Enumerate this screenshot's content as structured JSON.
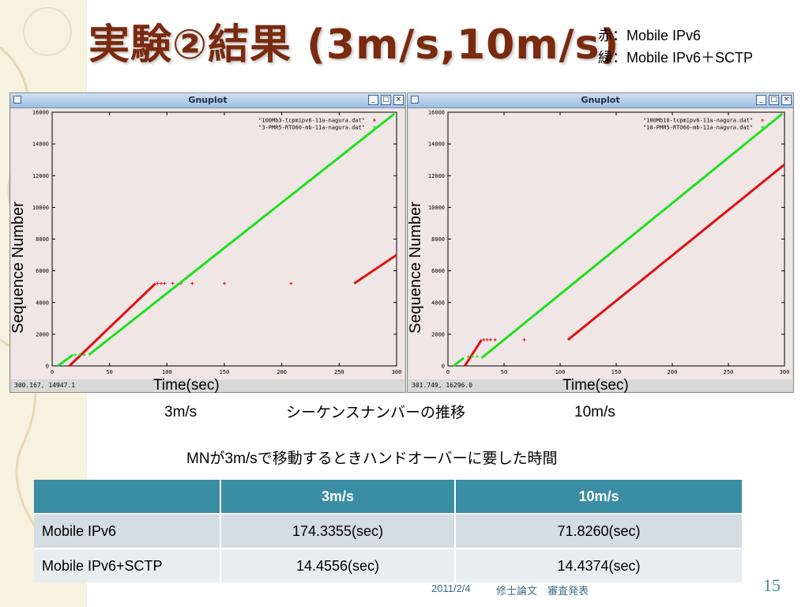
{
  "slide": {
    "title": "実験②結果 (3m/s,10m/s)",
    "legend_red": "赤：Mobile IPv6",
    "legend_green": "緑：Mobile IPv6＋SCTP",
    "caption_center": "シーケンスナンバーの推移",
    "caption_left_speed": "3m/s",
    "caption_right_speed": "10m/s",
    "axis_y_label": "Sequence Number",
    "axis_x_label": "Time(sec)",
    "table_title": "MNが3m/sで移動するときハンドオーバーに要した時間",
    "footer_date": "2011/2/4",
    "footer_text": "修士論文　審査発表",
    "page_number": "15"
  },
  "colors": {
    "title": "#7a2a0e",
    "table_header": "#3a8da3",
    "series_red": "#e01010",
    "series_green": "#1ee01e",
    "plot_bg": "#f0e6e6"
  },
  "windows": [
    {
      "title": "Gnuplot",
      "status": "300.167,  14947.1",
      "keys": [
        "\"100Mb3-tcpmipv6-11a-nagura.dat\"",
        "\"3-PMR5-RTO60-mb-11a-nagura.dat\""
      ]
    },
    {
      "title": "Gnuplot",
      "status": "301.749,  16296.0",
      "keys": [
        "\"100Mb10-tcpmipv6-11a-nagura.dat\"",
        "\"10-PMR5-RTO60-mb-11a-nagura.dat\""
      ]
    }
  ],
  "table": {
    "headers": [
      "",
      "3m/s",
      "10m/s"
    ],
    "rows": [
      [
        "Mobile IPv6",
        "174.3355(sec)",
        "71.8260(sec)"
      ],
      [
        "Mobile IPv6+SCTP",
        "14.4556(sec)",
        "14.4374(sec)"
      ]
    ]
  },
  "chart_data": [
    {
      "type": "scatter",
      "x_ticks": [
        "0",
        "50",
        "100",
        "150",
        "200",
        "250",
        "300"
      ],
      "y_ticks": [
        "0",
        "2000",
        "4000",
        "6000",
        "8000",
        "10000",
        "12000",
        "14000",
        "16000"
      ],
      "xlim": [
        0,
        300
      ],
      "ylim": [
        0,
        16000
      ],
      "series": [
        {
          "name": "\"100Mb3-tcpmipv6-11a-nagura.dat\"",
          "color": "#e01010",
          "segments": [
            [
              [
                15,
                0
              ],
              [
                90,
                5200
              ]
            ],
            [
              [
                263,
                5200
              ],
              [
                300,
                7000
              ]
            ]
          ],
          "points": [
            [
              92,
              5200
            ],
            [
              95,
              5200
            ],
            [
              98,
              5200
            ],
            [
              105,
              5200
            ],
            [
              112,
              5200
            ],
            [
              122,
              5200
            ],
            [
              150,
              5200
            ],
            [
              208,
              5200
            ]
          ]
        },
        {
          "name": "\"3-PMR5-RTO60-mb-11a-nagura.dat\"",
          "color": "#1ee01e",
          "segments": [
            [
              [
                5,
                0
              ],
              [
                18,
                700
              ]
            ],
            [
              [
                32,
                700
              ],
              [
                298,
                15900
              ]
            ]
          ],
          "points": [
            [
              20,
              700
            ],
            [
              24,
              700
            ],
            [
              28,
              700
            ]
          ]
        }
      ]
    },
    {
      "type": "scatter",
      "x_ticks": [
        "0",
        "50",
        "100",
        "150",
        "200",
        "250",
        "300"
      ],
      "y_ticks": [
        "0",
        "2000",
        "4000",
        "6000",
        "8000",
        "10000",
        "12000",
        "14000",
        "16000"
      ],
      "xlim": [
        0,
        300
      ],
      "ylim": [
        0,
        16000
      ],
      "series": [
        {
          "name": "\"100Mb10-tcpmipv6-11a-nagura.dat\"",
          "color": "#e01010",
          "segments": [
            [
              [
                15,
                0
              ],
              [
                30,
                1650
              ]
            ],
            [
              [
                107,
                1650
              ],
              [
                300,
                12700
              ]
            ]
          ],
          "points": [
            [
              32,
              1650
            ],
            [
              35,
              1650
            ],
            [
              38,
              1650
            ],
            [
              42,
              1650
            ],
            [
              68,
              1650
            ]
          ]
        },
        {
          "name": "\"10-PMR5-RTO60-mb-11a-nagura.dat\"",
          "color": "#1ee01e",
          "segments": [
            [
              [
                5,
                0
              ],
              [
                14,
                500
              ]
            ],
            [
              [
                30,
                500
              ],
              [
                298,
                15900
              ]
            ]
          ],
          "points": [
            [
              18,
              600
            ],
            [
              22,
              600
            ],
            [
              26,
              600
            ]
          ]
        }
      ]
    }
  ]
}
